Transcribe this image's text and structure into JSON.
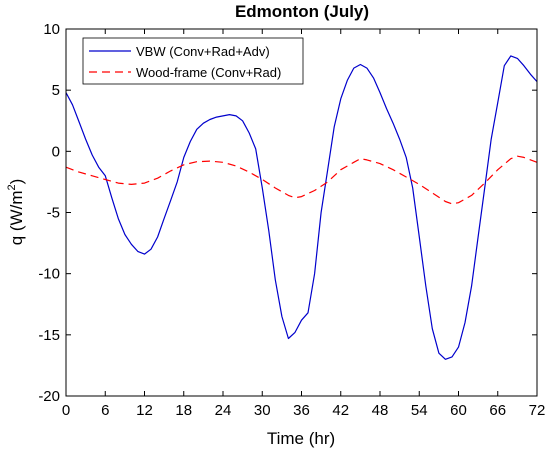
{
  "chart_data": {
    "type": "line",
    "title": "Edmonton (July)",
    "xlabel": "Time (hr)",
    "ylabel_main": "q (W/m",
    "ylabel_sup": "2",
    "ylabel_close": ")",
    "xlim": [
      0,
      72
    ],
    "ylim": [
      -20,
      10
    ],
    "xticks": [
      0,
      6,
      12,
      18,
      24,
      30,
      36,
      42,
      48,
      54,
      60,
      66,
      72
    ],
    "yticks": [
      -20,
      -15,
      -10,
      -5,
      0,
      5,
      10
    ],
    "grid": false,
    "legend_position": "top-left",
    "series": [
      {
        "name": "VBW (Conv+Rad+Adv)",
        "color": "#0000cc",
        "style": "solid",
        "x": [
          0,
          1,
          2,
          3,
          4,
          5,
          6,
          7,
          8,
          9,
          10,
          11,
          12,
          13,
          14,
          15,
          16,
          17,
          18,
          19,
          20,
          21,
          22,
          23,
          24,
          25,
          26,
          27,
          28,
          29,
          30,
          31,
          32,
          33,
          34,
          35,
          36,
          37,
          38,
          39,
          40,
          41,
          42,
          43,
          44,
          45,
          46,
          47,
          48,
          49,
          50,
          51,
          52,
          53,
          54,
          55,
          56,
          57,
          58,
          59,
          60,
          61,
          62,
          63,
          64,
          65,
          66,
          67,
          68,
          69,
          70,
          71,
          72
        ],
        "y": [
          4.8,
          3.8,
          2.4,
          1.0,
          -0.3,
          -1.3,
          -2.0,
          -3.8,
          -5.5,
          -6.8,
          -7.6,
          -8.2,
          -8.4,
          -8.0,
          -7.0,
          -5.5,
          -4.0,
          -2.5,
          -0.5,
          0.8,
          1.8,
          2.3,
          2.6,
          2.8,
          2.9,
          3.0,
          2.9,
          2.5,
          1.5,
          0.2,
          -3.0,
          -6.5,
          -10.5,
          -13.5,
          -15.3,
          -14.8,
          -13.8,
          -13.2,
          -10.0,
          -5.0,
          -1.5,
          2.0,
          4.3,
          5.8,
          6.8,
          7.1,
          6.8,
          6.0,
          4.8,
          3.5,
          2.3,
          1.0,
          -0.5,
          -3.0,
          -7.0,
          -11.0,
          -14.5,
          -16.5,
          -17.0,
          -16.8,
          -16.0,
          -14.0,
          -11.0,
          -7.0,
          -3.0,
          1.0,
          4.0,
          7.0,
          7.8,
          7.6,
          7.0,
          6.3,
          5.7
        ]
      },
      {
        "name": "Wood-frame (Conv+Rad)",
        "color": "#ff0000",
        "style": "dashed",
        "x": [
          0,
          2,
          4,
          6,
          8,
          10,
          12,
          14,
          16,
          18,
          20,
          22,
          24,
          26,
          28,
          30,
          32,
          34,
          35,
          36,
          38,
          40,
          42,
          44,
          45,
          46,
          48,
          50,
          52,
          54,
          56,
          58,
          59,
          60,
          62,
          64,
          66,
          68,
          69,
          70,
          72
        ],
        "y": [
          -1.3,
          -1.7,
          -2.0,
          -2.3,
          -2.6,
          -2.7,
          -2.6,
          -2.2,
          -1.6,
          -1.1,
          -0.85,
          -0.8,
          -0.9,
          -1.2,
          -1.7,
          -2.3,
          -3.0,
          -3.6,
          -3.8,
          -3.7,
          -3.2,
          -2.5,
          -1.5,
          -0.9,
          -0.6,
          -0.7,
          -1.0,
          -1.5,
          -2.1,
          -2.7,
          -3.4,
          -4.1,
          -4.3,
          -4.2,
          -3.6,
          -2.6,
          -1.5,
          -0.6,
          -0.4,
          -0.5,
          -0.9
        ]
      }
    ]
  }
}
